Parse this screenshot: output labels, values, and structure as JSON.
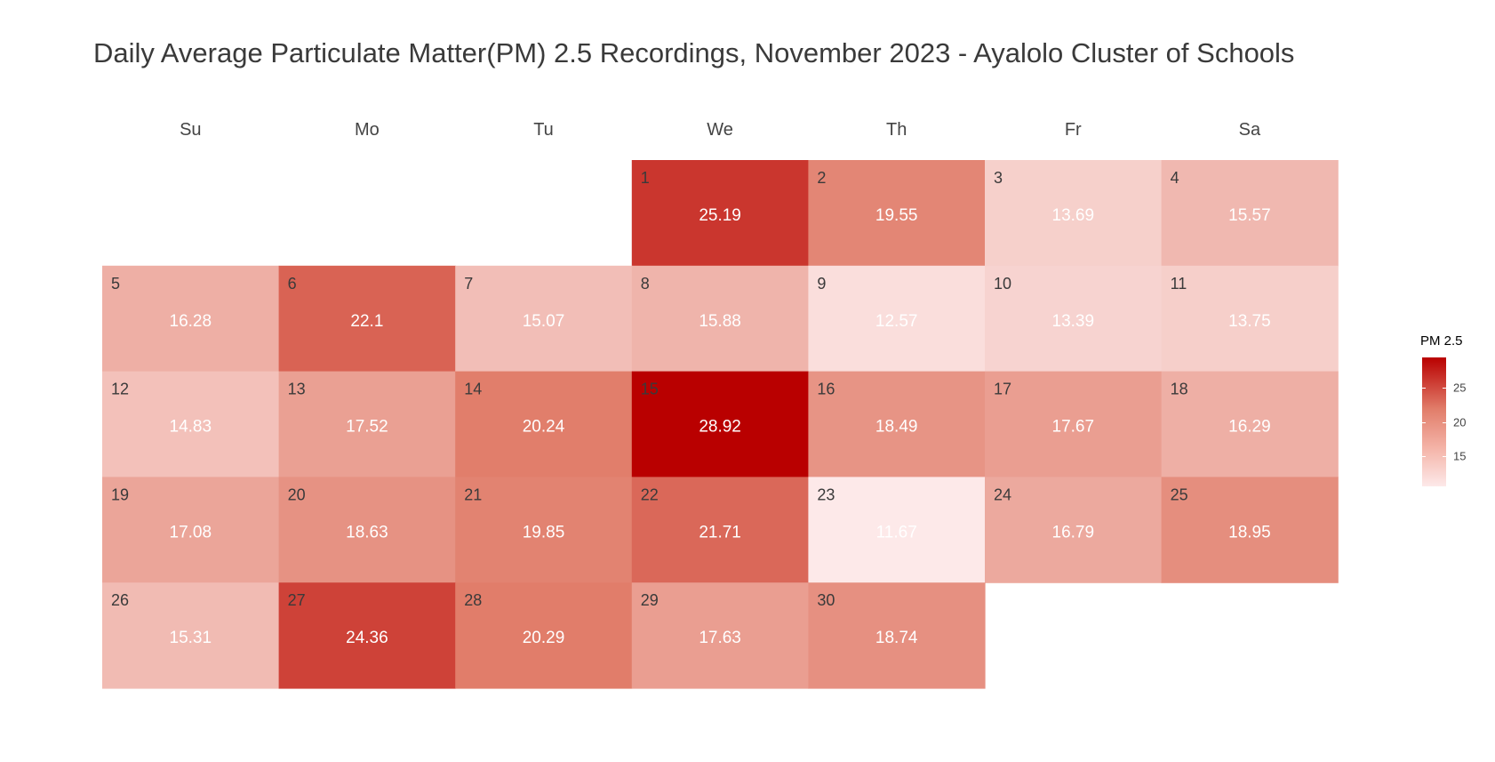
{
  "chart_data": {
    "type": "heatmap",
    "title": "Daily Average Particulate Matter(PM) 2.5 Recordings, November 2023 - Ayalolo Cluster of Schools",
    "weekdays": [
      "Su",
      "Mo",
      "Tu",
      "We",
      "Th",
      "Fr",
      "Sa"
    ],
    "first_weekday_index": 3,
    "days": [
      {
        "day": "1",
        "value": 25.19,
        "label": "25.19"
      },
      {
        "day": "2",
        "value": 19.55,
        "label": "19.55"
      },
      {
        "day": "3",
        "value": 13.69,
        "label": "13.69"
      },
      {
        "day": "4",
        "value": 15.57,
        "label": "15.57"
      },
      {
        "day": "5",
        "value": 16.28,
        "label": "16.28"
      },
      {
        "day": "6",
        "value": 22.1,
        "label": "22.1"
      },
      {
        "day": "7",
        "value": 15.07,
        "label": "15.07"
      },
      {
        "day": "8",
        "value": 15.88,
        "label": "15.88"
      },
      {
        "day": "9",
        "value": 12.57,
        "label": "12.57"
      },
      {
        "day": "10",
        "value": 13.39,
        "label": "13.39"
      },
      {
        "day": "11",
        "value": 13.75,
        "label": "13.75"
      },
      {
        "day": "12",
        "value": 14.83,
        "label": "14.83"
      },
      {
        "day": "13",
        "value": 17.52,
        "label": "17.52"
      },
      {
        "day": "14",
        "value": 20.24,
        "label": "20.24"
      },
      {
        "day": "15",
        "value": 28.92,
        "label": "28.92"
      },
      {
        "day": "16",
        "value": 18.49,
        "label": "18.49"
      },
      {
        "day": "17",
        "value": 17.67,
        "label": "17.67"
      },
      {
        "day": "18",
        "value": 16.29,
        "label": "16.29"
      },
      {
        "day": "19",
        "value": 17.08,
        "label": "17.08"
      },
      {
        "day": "20",
        "value": 18.63,
        "label": "18.63"
      },
      {
        "day": "21",
        "value": 19.85,
        "label": "19.85"
      },
      {
        "day": "22",
        "value": 21.71,
        "label": "21.71"
      },
      {
        "day": "23",
        "value": 11.67,
        "label": "11.67"
      },
      {
        "day": "24",
        "value": 16.79,
        "label": "16.79"
      },
      {
        "day": "25",
        "value": 18.95,
        "label": "18.95"
      },
      {
        "day": "26",
        "value": 15.31,
        "label": "15.31"
      },
      {
        "day": "27",
        "value": 24.36,
        "label": "24.36"
      },
      {
        "day": "28",
        "value": 20.29,
        "label": "20.29"
      },
      {
        "day": "29",
        "value": 17.63,
        "label": "17.63"
      },
      {
        "day": "30",
        "value": 18.74,
        "label": "18.74"
      }
    ],
    "color_scale": {
      "min": 11.67,
      "max": 28.92,
      "low_color": "#fde9e9",
      "mid_color": "#e17d6a",
      "high_color": "#b90000"
    },
    "legend": {
      "title": "PM 2.5",
      "ticks": [
        {
          "value": 15,
          "label": "15"
        },
        {
          "value": 20,
          "label": "20"
        },
        {
          "value": 25,
          "label": "25"
        }
      ],
      "placement": "right"
    }
  }
}
